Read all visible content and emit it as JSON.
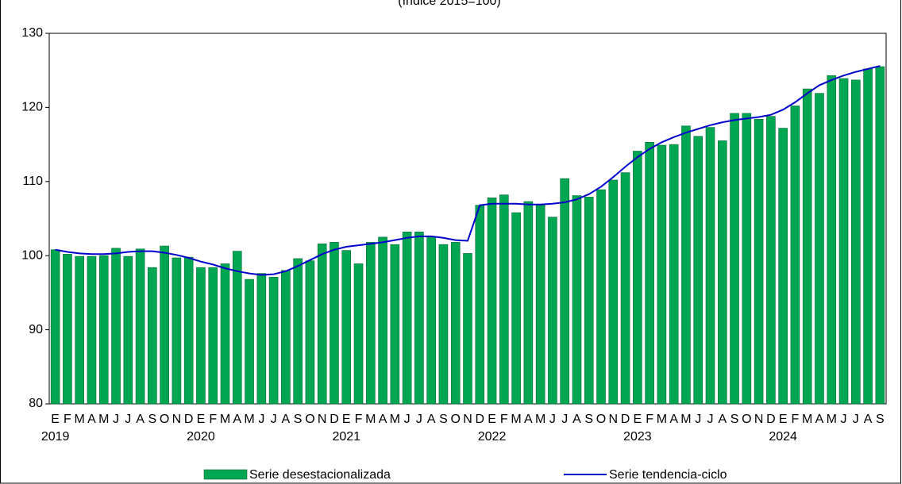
{
  "chart_data": {
    "type": "bar",
    "title": "(índice 2015=100)",
    "categories": [
      "E",
      "F",
      "M",
      "A",
      "M",
      "J",
      "J",
      "A",
      "S",
      "O",
      "N",
      "D",
      "E",
      "F",
      "M",
      "A",
      "M",
      "J",
      "J",
      "A",
      "S",
      "O",
      "N",
      "D",
      "E",
      "F",
      "M",
      "A",
      "M",
      "J",
      "J",
      "A",
      "S",
      "O",
      "N",
      "D",
      "E",
      "F",
      "M",
      "A",
      "M",
      "J",
      "J",
      "A",
      "S",
      "O",
      "N",
      "D",
      "E",
      "F",
      "M",
      "A",
      "M",
      "J",
      "J",
      "A",
      "S",
      "O",
      "N",
      "D",
      "E",
      "F",
      "M",
      "A",
      "M",
      "J",
      "J",
      "A",
      "S"
    ],
    "groups": [
      "2019",
      "2020",
      "2021",
      "2022",
      "2023",
      "2024"
    ],
    "series": [
      {
        "name": "Serie desestacionalizada",
        "type": "bar",
        "color": "#00a651",
        "values": [
          100.8,
          100.2,
          99.9,
          99.9,
          100.0,
          101.0,
          99.9,
          100.9,
          98.4,
          101.3,
          99.7,
          99.8,
          98.4,
          98.4,
          98.9,
          100.6,
          96.8,
          97.6,
          97.1,
          98.0,
          99.6,
          99.3,
          101.6,
          101.8,
          100.7,
          98.9,
          101.8,
          102.5,
          101.5,
          103.2,
          103.2,
          102.6,
          101.5,
          101.8,
          100.3,
          106.8,
          107.8,
          108.2,
          105.8,
          107.3,
          106.9,
          105.2,
          110.4,
          108.1,
          107.9,
          108.9,
          110.2,
          111.2,
          114.1,
          115.3,
          114.9,
          115.0,
          117.5,
          116.1,
          117.3,
          115.5,
          119.2,
          119.2,
          118.4,
          118.8,
          117.2,
          120.2,
          122.5,
          121.9,
          124.3,
          123.9,
          123.7,
          125.2,
          125.5
        ]
      },
      {
        "name": "Serie tendencia-ciclo",
        "type": "line",
        "color": "#0000cc",
        "values": [
          100.8,
          100.5,
          100.3,
          100.2,
          100.2,
          100.3,
          100.5,
          100.6,
          100.6,
          100.4,
          100.1,
          99.7,
          99.2,
          98.8,
          98.3,
          97.9,
          97.6,
          97.4,
          97.5,
          97.9,
          98.6,
          99.4,
          100.2,
          100.8,
          101.2,
          101.4,
          101.6,
          101.8,
          102.1,
          102.4,
          102.6,
          102.6,
          102.4,
          102.1,
          102.0,
          106.8,
          107.0,
          107.0,
          107.0,
          106.9,
          106.9,
          107.0,
          107.2,
          107.6,
          108.3,
          109.3,
          110.6,
          112.0,
          113.3,
          114.4,
          115.3,
          116.0,
          116.6,
          117.1,
          117.6,
          118.0,
          118.3,
          118.5,
          118.7,
          119.0,
          119.7,
          120.7,
          121.9,
          123.0,
          123.7,
          124.3,
          124.8,
          125.2,
          125.6
        ]
      }
    ],
    "ylim": [
      80,
      130
    ],
    "yticks": [
      80,
      90,
      100,
      110,
      120,
      130
    ],
    "grid": false
  }
}
